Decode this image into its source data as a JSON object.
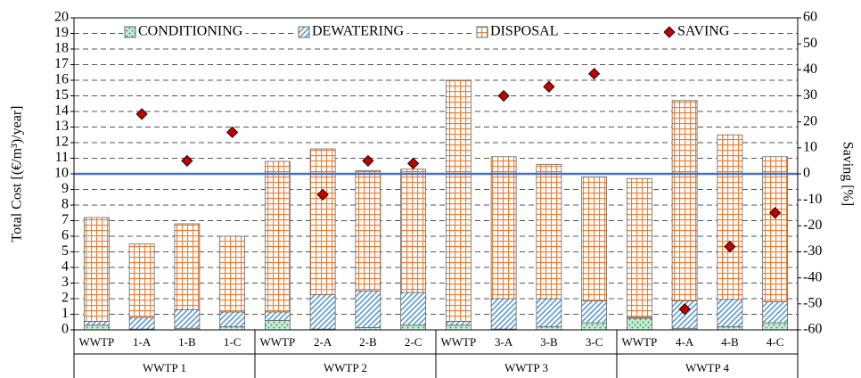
{
  "chart_data": {
    "type": "stacked-bar-scatter",
    "ylabel": "Total Cost [(€/m³)/year]",
    "y2label": "Saving [%]",
    "ylim": [
      0,
      20
    ],
    "yticks": [
      0,
      1,
      2,
      3,
      4,
      5,
      6,
      7,
      8,
      9,
      10,
      11,
      12,
      13,
      14,
      15,
      16,
      17,
      18,
      19,
      20
    ],
    "y2lim": [
      -60,
      60
    ],
    "y2ticks": [
      -60,
      -50,
      -40,
      -30,
      -20,
      -10,
      0,
      10,
      20,
      30,
      40,
      50,
      60
    ],
    "grid": true,
    "legend": "top",
    "reference_line": {
      "axis": "y2",
      "value": 0,
      "color": "#4472c4"
    },
    "groups": [
      {
        "name": "WWTP 1",
        "categories": [
          "WWTP",
          "1-A",
          "1-B",
          "1-C"
        ]
      },
      {
        "name": "WWTP 2",
        "categories": [
          "WWTP",
          "2-A",
          "2-B",
          "2-C"
        ]
      },
      {
        "name": "WWTP 3",
        "categories": [
          "WWTP",
          "3-A",
          "3-B",
          "3-C"
        ]
      },
      {
        "name": "WWTP 4",
        "categories": [
          "WWTP",
          "4-A",
          "4-B",
          "4-C"
        ]
      }
    ],
    "series": [
      {
        "name": "CONDITIONING",
        "color": "#2e9e5b",
        "values": [
          0.3,
          0.05,
          0.1,
          0.2,
          0.6,
          0.05,
          0.15,
          0.3,
          0.3,
          0.05,
          0.2,
          0.45,
          0.75,
          0.1,
          0.2,
          0.45
        ]
      },
      {
        "name": "DEWATERING",
        "color": "#5b9bd5",
        "values": [
          0.25,
          0.75,
          1.2,
          0.95,
          0.55,
          2.2,
          2.35,
          2.1,
          0.25,
          1.95,
          1.8,
          1.4,
          0.05,
          1.75,
          1.75,
          1.35
        ]
      },
      {
        "name": "DISPOSAL",
        "color": "#ed7d31",
        "values": [
          6.65,
          4.7,
          5.5,
          4.85,
          9.65,
          9.35,
          7.7,
          7.9,
          15.45,
          9.1,
          8.6,
          7.95,
          8.9,
          12.85,
          10.55,
          9.3
        ]
      },
      {
        "name": "SAVING",
        "color": "#c00000",
        "axis": "y2",
        "values": [
          null,
          23,
          5,
          16,
          null,
          -8,
          5,
          4,
          null,
          30,
          33.5,
          38.5,
          null,
          -52,
          -28,
          -15
        ]
      }
    ]
  }
}
